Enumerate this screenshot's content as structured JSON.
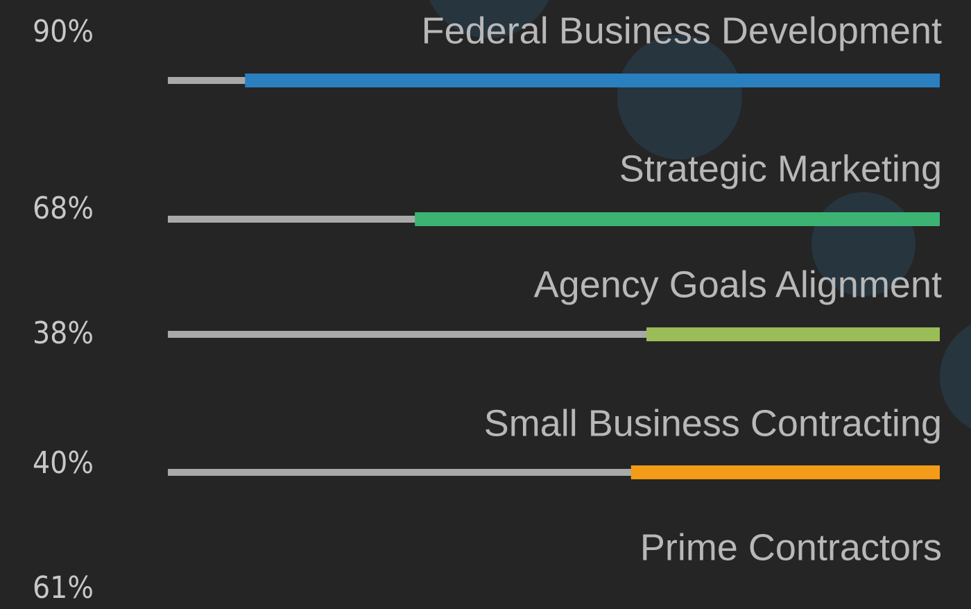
{
  "skills": [
    {
      "name": "Federal Business Development",
      "value": 90,
      "label": "90%",
      "color": "#2a80be"
    },
    {
      "name": "Strategic Marketing",
      "value": 68,
      "label": "68%",
      "color": "#3db373"
    },
    {
      "name": "Agency Goals Alignment",
      "value": 38,
      "label": "38%",
      "color": "#9bbd58"
    },
    {
      "name": "Small Business Contracting",
      "value": 40,
      "label": "40%",
      "color": "#f39c17"
    },
    {
      "name": "Prime Contractors",
      "value": 61,
      "label": "61%",
      "color": "#9b59b6"
    }
  ]
}
